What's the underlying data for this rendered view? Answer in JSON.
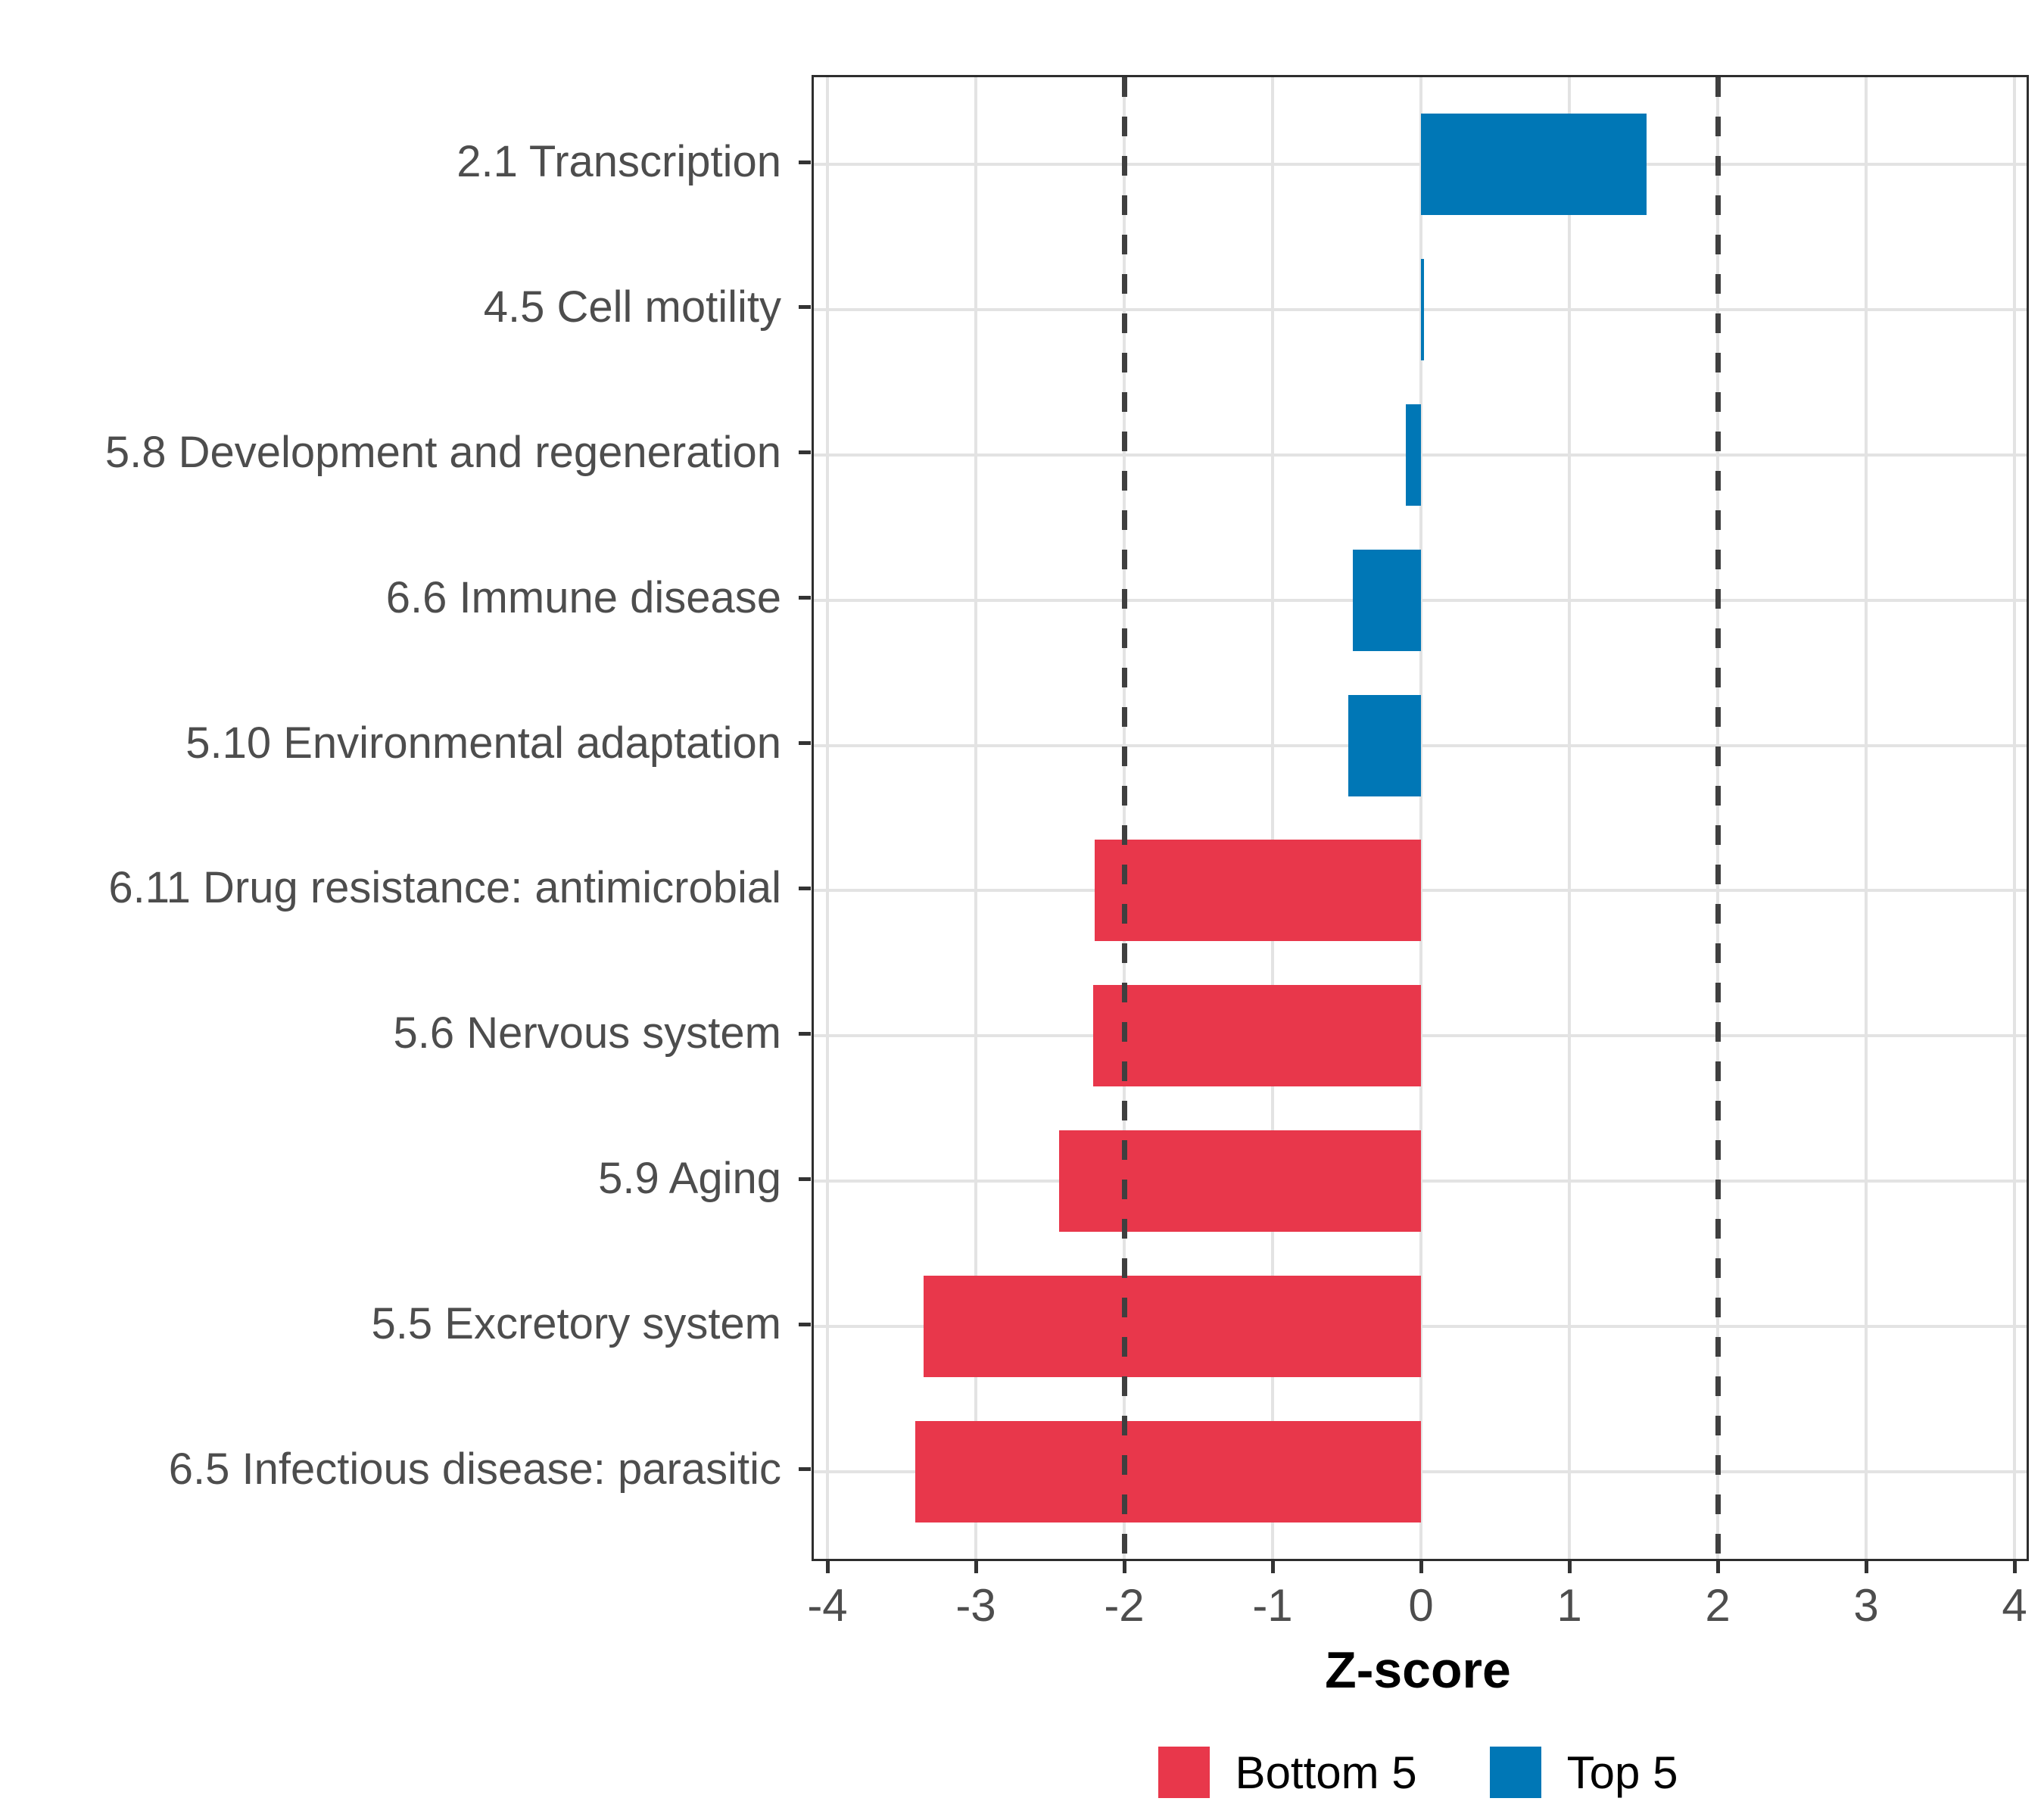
{
  "chart_data": {
    "type": "bar",
    "orientation": "horizontal",
    "title": "",
    "xlabel": "Z-score",
    "ylabel": "",
    "xlim": [
      -4,
      4
    ],
    "xticks": [
      -4,
      -3,
      -2,
      -1,
      0,
      1,
      2,
      3,
      4
    ],
    "grid": true,
    "categories": [
      "2.1 Transcription",
      "4.5 Cell motility",
      "5.8 Development and regeneration",
      "6.6 Immune disease",
      "5.10 Environmental adaptation",
      "6.11 Drug resistance: antimicrobial",
      "5.6 Nervous system",
      "5.9 Aging",
      "5.5 Excretory system",
      "6.5 Infectious disease: parasitic"
    ],
    "values": [
      1.52,
      0.02,
      -0.1,
      -0.46,
      -0.49,
      -2.2,
      -2.21,
      -2.44,
      -3.35,
      -3.41
    ],
    "groups": [
      "Top 5",
      "Top 5",
      "Top 5",
      "Top 5",
      "Top 5",
      "Bottom 5",
      "Bottom 5",
      "Bottom 5",
      "Bottom 5",
      "Bottom 5"
    ],
    "group_colors": {
      "Bottom 5": "#E8374B",
      "Top 5": "#0077B6"
    },
    "reference_lines": [
      -2,
      2
    ],
    "reference_line_style": "dashed",
    "legend_position": "bottom",
    "legend": {
      "entries": [
        {
          "label": "Bottom 5",
          "color": "#E8374B"
        },
        {
          "label": "Top 5",
          "color": "#0077B6"
        }
      ]
    }
  },
  "styles": {
    "panel_border_color": "#2E2E2E",
    "gridline_color": "#E3E3E3",
    "reference_line_color": "#3F3F3F",
    "axis_text_color": "#4D4D4D",
    "tick_color": "#333333",
    "axis_title_color": "#000000",
    "background_color": "#FFFFFF"
  }
}
